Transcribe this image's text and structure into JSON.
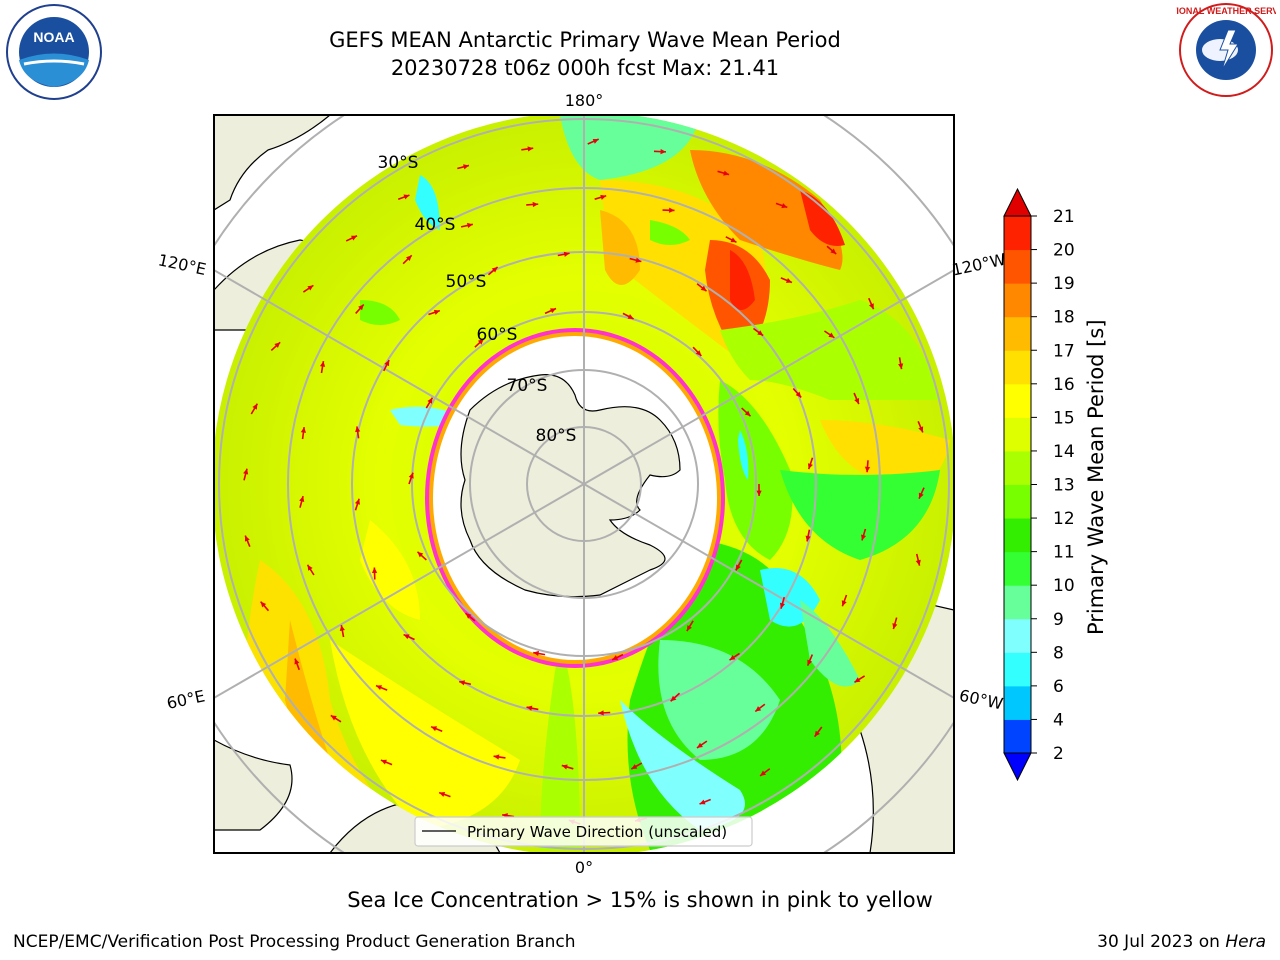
{
  "title": {
    "line1": "GEFS MEAN Antarctic Primary Wave Mean Period",
    "line2": "20230728 t06z 000h fcst   Max: 21.41"
  },
  "map": {
    "projection": "south-polar-stereographic",
    "longitude_labels": [
      "180°",
      "120°E",
      "120°W",
      "60°E",
      "60°W",
      "0°"
    ],
    "latitude_labels": [
      "30°S",
      "40°S",
      "50°S",
      "60°S",
      "70°S",
      "80°S"
    ],
    "legend_label": "Primary Wave Direction (unscaled)",
    "colors": {
      "land": "#eeeedc",
      "ice_interior": "#ffffff",
      "ice_edge": "#ff33cc",
      "arrow": "#e8000b",
      "grid": "#b0b0b0"
    }
  },
  "colorbar": {
    "label": "Primary Wave Mean Period [s]",
    "ticks": [
      "2",
      "4",
      "6",
      "8",
      "9",
      "10",
      "11",
      "12",
      "13",
      "14",
      "15",
      "16",
      "17",
      "18",
      "19",
      "20",
      "21"
    ],
    "colors": [
      "#0044ff",
      "#00c8ff",
      "#33ffff",
      "#80ffff",
      "#66ff99",
      "#33ff33",
      "#33ee00",
      "#77ff00",
      "#aaff00",
      "#ddff00",
      "#ffff00",
      "#ffe000",
      "#ffbb00",
      "#ff8800",
      "#ff5500",
      "#ff2200"
    ],
    "under_color": "#0000ff",
    "over_color": "#e00000"
  },
  "caption": "Sea Ice Concentration > 15% is shown in pink to yellow",
  "footer": {
    "left": "NCEP/EMC/Verification Post Processing Product Generation Branch",
    "right_date": "30 Jul 2023 on ",
    "right_machine": "Hera"
  },
  "logos": {
    "noaa": "NOAA",
    "nws": "NATIONAL WEATHER SERVICE"
  }
}
